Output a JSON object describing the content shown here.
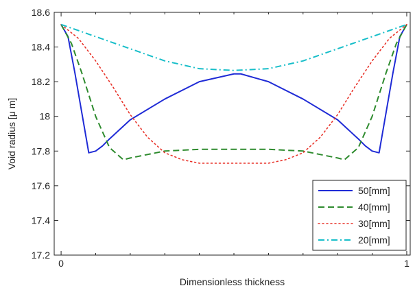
{
  "chart_data": {
    "type": "line",
    "title": "",
    "xlabel": "Dimensionless thickness",
    "ylabel": "Void radius [μ m]",
    "xlim": [
      -0.02,
      1.01
    ],
    "ylim": [
      17.2,
      18.6
    ],
    "x_major_ticks": [
      0,
      1
    ],
    "x_major_tick_labels": [
      "0",
      "1"
    ],
    "x_minor_ticks": [
      0.1,
      0.2,
      0.3,
      0.4,
      0.5,
      0.6,
      0.7,
      0.8,
      0.9
    ],
    "y_ticks": [
      17.2,
      17.4,
      17.6,
      17.8,
      18.0,
      18.2,
      18.4,
      18.6
    ],
    "y_tick_labels": [
      "17.2",
      "17.4",
      "17.6",
      "17.8",
      "18",
      "18.2",
      "18.4",
      "18.6"
    ],
    "grid": false,
    "legend_position": "bottom-right",
    "series": [
      {
        "name": "50[mm]",
        "color": "#1f2bd6",
        "dash": "solid",
        "x": [
          0,
          0.02,
          0.04,
          0.06,
          0.08,
          0.1,
          0.12,
          0.14,
          0.2,
          0.3,
          0.4,
          0.5,
          0.52,
          0.6,
          0.7,
          0.8,
          0.86,
          0.88,
          0.9,
          0.92,
          0.94,
          0.96,
          0.98,
          1.0
        ],
        "y": [
          18.53,
          18.46,
          18.25,
          18.02,
          17.79,
          17.8,
          17.83,
          17.87,
          17.98,
          18.1,
          18.2,
          18.245,
          18.245,
          18.2,
          18.1,
          17.98,
          17.87,
          17.83,
          17.8,
          17.79,
          18.02,
          18.25,
          18.46,
          18.53
        ]
      },
      {
        "name": "40[mm]",
        "color": "#2e8b2e",
        "dash": "dashed",
        "x": [
          0,
          0.03,
          0.06,
          0.1,
          0.14,
          0.18,
          0.2,
          0.3,
          0.4,
          0.5,
          0.6,
          0.7,
          0.8,
          0.82,
          0.86,
          0.9,
          0.94,
          0.97,
          1.0
        ],
        "y": [
          18.53,
          18.42,
          18.25,
          18.0,
          17.82,
          17.75,
          17.76,
          17.8,
          17.81,
          17.81,
          17.81,
          17.8,
          17.76,
          17.75,
          17.82,
          18.0,
          18.25,
          18.42,
          18.53
        ],
        "note": ""
      },
      {
        "name": "30[mm]",
        "color": "#e8332a",
        "dash": "dotted",
        "x": [
          0,
          0.05,
          0.1,
          0.15,
          0.2,
          0.25,
          0.3,
          0.35,
          0.4,
          0.45,
          0.5,
          0.55,
          0.6,
          0.65,
          0.7,
          0.75,
          0.8,
          0.85,
          0.9,
          0.95,
          1.0
        ],
        "y": [
          18.53,
          18.45,
          18.32,
          18.17,
          18.01,
          17.88,
          17.79,
          17.75,
          17.73,
          17.73,
          17.73,
          17.73,
          17.73,
          17.75,
          17.79,
          17.88,
          18.01,
          18.17,
          18.32,
          18.45,
          18.53
        ]
      },
      {
        "name": "20[mm]",
        "color": "#17bec9",
        "dash": "dashdot",
        "x": [
          0,
          0.1,
          0.2,
          0.3,
          0.4,
          0.5,
          0.6,
          0.7,
          0.8,
          0.9,
          1.0
        ],
        "y": [
          18.53,
          18.46,
          18.39,
          18.32,
          18.275,
          18.265,
          18.275,
          18.32,
          18.39,
          18.46,
          18.53
        ]
      }
    ]
  }
}
